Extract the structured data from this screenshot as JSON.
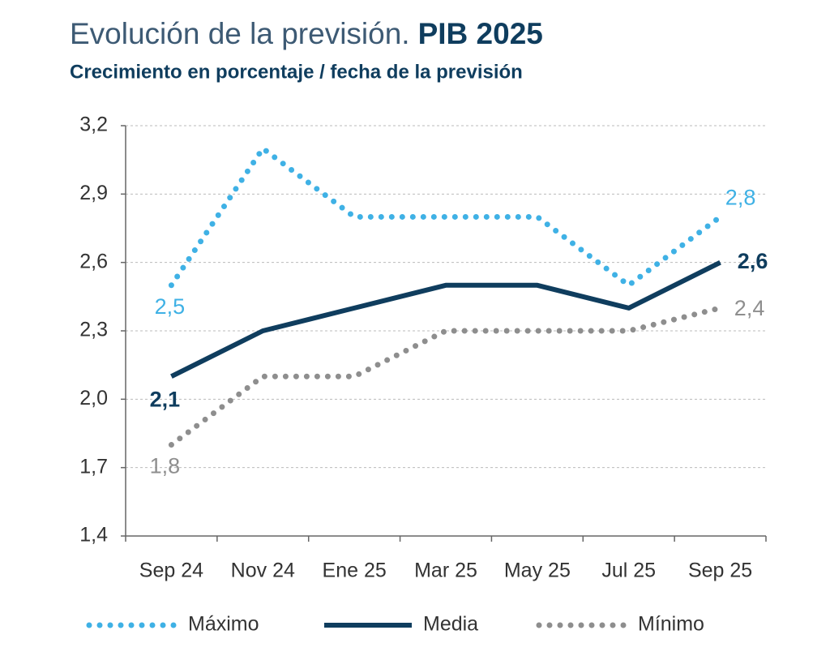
{
  "chart_data": {
    "type": "line",
    "title": "Evolución de la previsión.",
    "title_emphasis": "PIB 2025",
    "subtitle": "Crecimiento en porcentaje / fecha de la previsión",
    "categories": [
      "Sep 24",
      "Nov 24",
      "Ene 25",
      "Mar 25",
      "May 25",
      "Jul 25",
      "Sep 25"
    ],
    "series": [
      {
        "name": "Máximo",
        "color": "#3fb1e5",
        "style": "dotted",
        "values": [
          2.5,
          3.1,
          2.8,
          2.8,
          2.8,
          2.5,
          2.8
        ],
        "value_labels": [
          "2,5",
          null,
          null,
          null,
          null,
          null,
          "2,8"
        ]
      },
      {
        "name": "Media",
        "color": "#0f3d5e",
        "style": "solid",
        "values": [
          2.1,
          2.3,
          2.4,
          2.5,
          2.5,
          2.4,
          2.6
        ],
        "value_labels": [
          "2,1",
          null,
          null,
          null,
          null,
          null,
          "2,6"
        ]
      },
      {
        "name": "Mínimo",
        "color": "#8e8e8e",
        "style": "dotted",
        "values": [
          1.8,
          2.1,
          2.1,
          2.3,
          2.3,
          2.3,
          2.4
        ],
        "value_labels": [
          "1,8",
          null,
          null,
          null,
          null,
          null,
          "2,4"
        ]
      }
    ],
    "ylim": [
      1.4,
      3.2
    ],
    "yticks": [
      {
        "value": 1.4,
        "label": "1,4"
      },
      {
        "value": 1.7,
        "label": "1,7"
      },
      {
        "value": 2.0,
        "label": "2,0"
      },
      {
        "value": 2.3,
        "label": "2,3"
      },
      {
        "value": 2.6,
        "label": "2,6"
      },
      {
        "value": 2.9,
        "label": "2,9"
      },
      {
        "value": 3.2,
        "label": "3,2"
      }
    ],
    "grid": true,
    "legend": "bottom"
  }
}
